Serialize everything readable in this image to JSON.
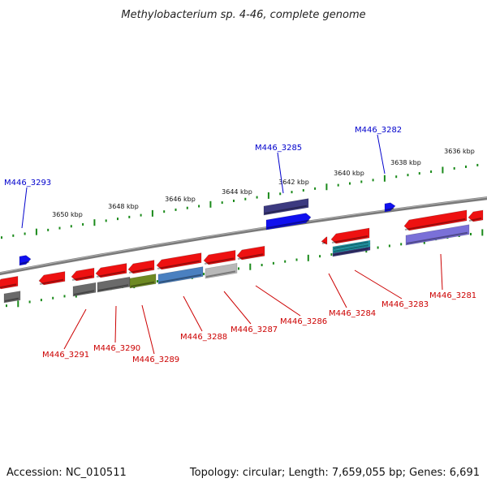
{
  "title": "Methylobacterium sp. 4-46, complete genome",
  "footer": {
    "accession": "Accession: NC_010511",
    "summary": "Topology: circular; Length: 7,659,055 bp; Genes: 6,691"
  },
  "scale_labels": [
    "3636 kbp",
    "3638 kbp",
    "3640 kbp",
    "3642 kbp",
    "3644 kbp",
    "3646 kbp",
    "3648 kbp",
    "3650 kbp"
  ],
  "colors": {
    "backbone": "#808080",
    "tick": "#1a8a1a",
    "forward_label": "#0000cc",
    "reverse_label": "#cc0000",
    "red": "#ee1111",
    "blue": "#1010ee",
    "navy": "#3c3a80",
    "purple": "#7a70d8",
    "gray": "#6a6a6a",
    "olive": "#6e8a22",
    "steel": "#4a80c0",
    "light_gray": "#b8b8b8",
    "teal": "#20a0b0"
  },
  "forward_genes": [
    {
      "id": "M446_3282",
      "color": "blue"
    },
    {
      "id": "M446_3285",
      "color": "navy"
    },
    {
      "id": "M446_3293",
      "color": "blue"
    }
  ],
  "reverse_genes": [
    {
      "id": "M446_3281",
      "color": "purple"
    },
    {
      "id": "M446_3283",
      "color": "teal"
    },
    {
      "id": "M446_3284",
      "color": "red"
    },
    {
      "id": "M446_3286",
      "color": "red"
    },
    {
      "id": "M446_3287",
      "color": "light_gray"
    },
    {
      "id": "M446_3288",
      "color": "steel"
    },
    {
      "id": "M446_3289",
      "color": "olive"
    },
    {
      "id": "M446_3290",
      "color": "gray"
    },
    {
      "id": "M446_3291",
      "color": "gray"
    }
  ]
}
